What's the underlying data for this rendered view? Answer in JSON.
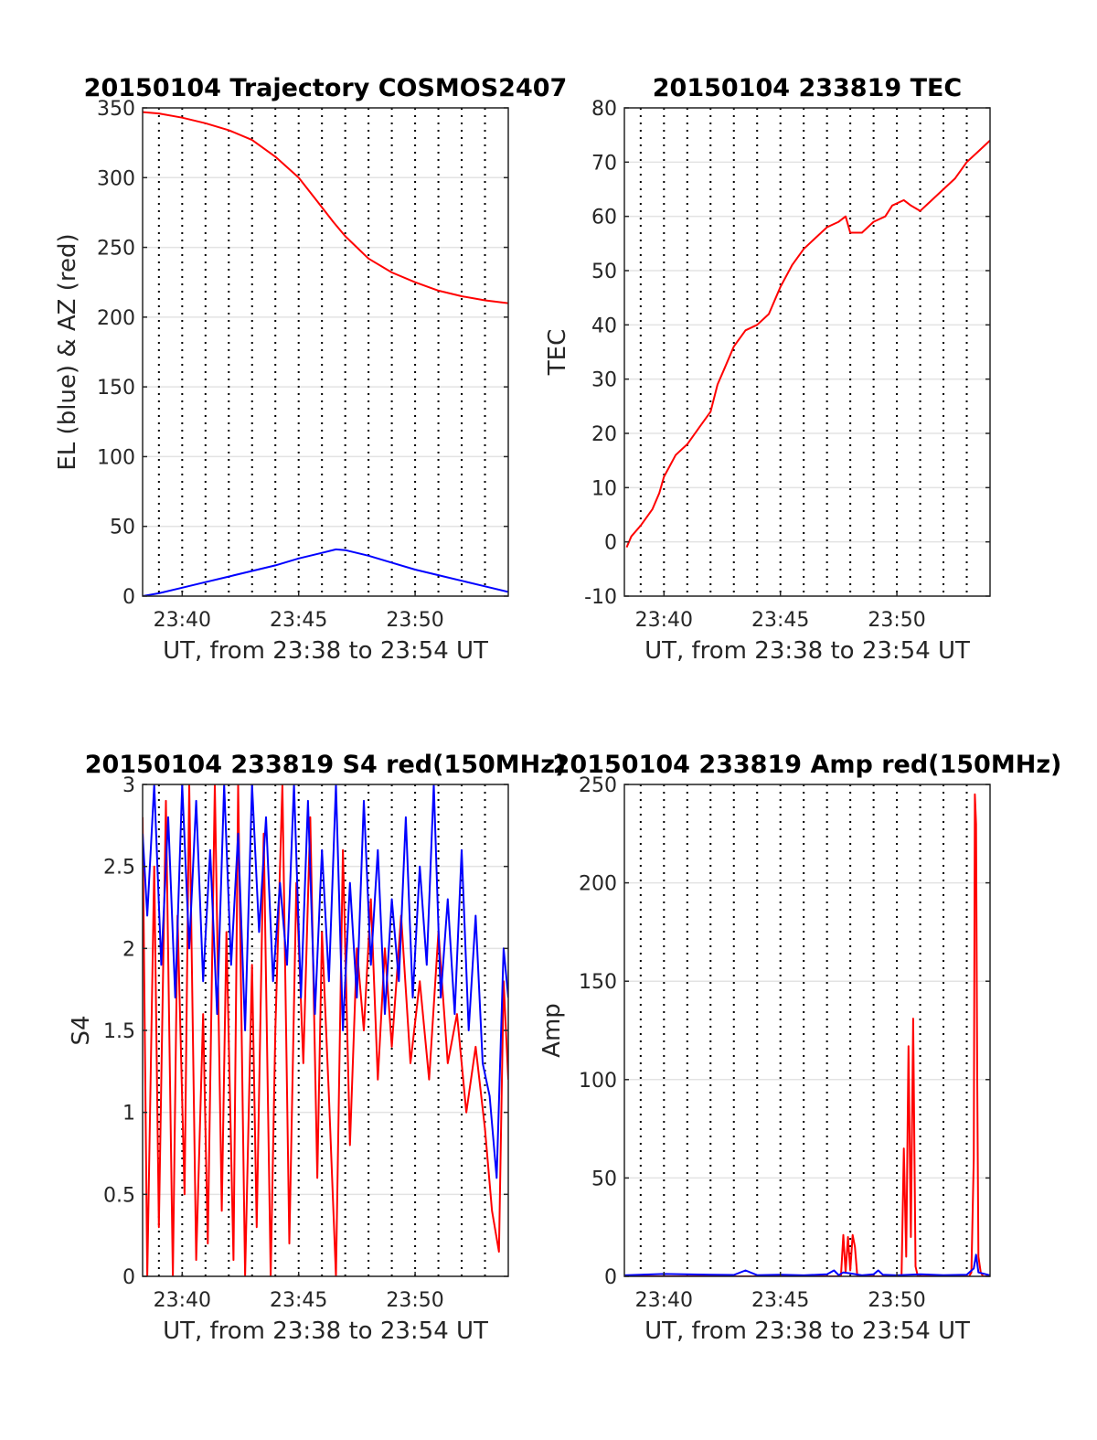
{
  "chart_data": [
    {
      "id": "trajectory",
      "type": "line",
      "title": "20150104 Trajectory COSMOS2407",
      "xlabel": "UT, from 23:38 to 23:54 UT",
      "ylabel": "EL (blue) & AZ (red)",
      "x_unit": "minutes of hour 23",
      "xlim": [
        38.3,
        54.0
      ],
      "ylim": [
        0,
        350
      ],
      "yticks": [
        0,
        50,
        100,
        150,
        200,
        250,
        300,
        350
      ],
      "ytick_labels": [
        "0",
        "50",
        "100",
        "150",
        "200",
        "250",
        "300",
        "350"
      ],
      "xticks": [
        40,
        45,
        50
      ],
      "xtick_labels": [
        "23:40",
        "23:45",
        "23:50"
      ],
      "minor_xgrid": [
        39,
        40,
        41,
        42,
        43,
        44,
        45,
        46,
        47,
        48,
        49,
        50,
        51,
        52,
        53
      ],
      "grid": true,
      "series": [
        {
          "color": "#ff0000",
          "x": [
            38.3,
            39.0,
            40.0,
            41.0,
            42.0,
            43.0,
            44.0,
            45.0,
            45.8,
            46.5,
            47.0,
            48.0,
            49.0,
            50.0,
            51.0,
            52.0,
            53.0,
            54.0
          ],
          "values": [
            347,
            346,
            343,
            339,
            334,
            327,
            315,
            300,
            283,
            268,
            258,
            242,
            232,
            225,
            219,
            215,
            212,
            210
          ]
        },
        {
          "color": "#0000ff",
          "x": [
            38.3,
            39.0,
            40.0,
            41.0,
            42.0,
            43.0,
            44.0,
            45.0,
            46.0,
            46.6,
            47.0,
            48.0,
            49.0,
            50.0,
            51.0,
            52.0,
            53.0,
            54.0
          ],
          "values": [
            0,
            2,
            6,
            10,
            14,
            18,
            22,
            27,
            31,
            33.5,
            33,
            29,
            24,
            19,
            15,
            11,
            7,
            3
          ]
        }
      ]
    },
    {
      "id": "tec",
      "type": "line",
      "title": "20150104 233819 TEC",
      "xlabel": "UT, from 23:38 to 23:54 UT",
      "ylabel": "TEC",
      "x_unit": "minutes of hour 23",
      "xlim": [
        38.3,
        54.0
      ],
      "ylim": [
        -10,
        80
      ],
      "yticks": [
        -10,
        0,
        10,
        20,
        30,
        40,
        50,
        60,
        70,
        80
      ],
      "ytick_labels": [
        "-10",
        "0",
        "10",
        "20",
        "30",
        "40",
        "50",
        "60",
        "70",
        "80"
      ],
      "xticks": [
        40,
        45,
        50
      ],
      "xtick_labels": [
        "23:40",
        "23:45",
        "23:50"
      ],
      "minor_xgrid": [
        39,
        40,
        41,
        42,
        43,
        44,
        45,
        46,
        47,
        48,
        49,
        50,
        51,
        52,
        53
      ],
      "grid": true,
      "series": [
        {
          "color": "#ff0000",
          "x": [
            38.4,
            38.6,
            39.0,
            39.5,
            39.8,
            40.0,
            40.5,
            41.0,
            41.5,
            42.0,
            42.3,
            42.6,
            43.0,
            43.5,
            44.0,
            44.5,
            45.0,
            45.5,
            46.0,
            46.5,
            47.0,
            47.5,
            47.8,
            48.0,
            48.5,
            49.0,
            49.5,
            49.8,
            50.3,
            50.6,
            51.0,
            51.5,
            52.0,
            52.5,
            53.0,
            53.5,
            54.0
          ],
          "values": [
            -1,
            1,
            3,
            6,
            9,
            12,
            16,
            18,
            21,
            24,
            29,
            32,
            36,
            39,
            40,
            42,
            47,
            51,
            54,
            56,
            58,
            59,
            60,
            57,
            57,
            59,
            60,
            62,
            63,
            62,
            61,
            63,
            65,
            67,
            70,
            72,
            74
          ]
        }
      ]
    },
    {
      "id": "s4",
      "type": "line",
      "title": "20150104 233819 S4 red(150MHz)",
      "xlabel": "UT, from 23:38 to 23:54 UT",
      "ylabel": "S4",
      "x_unit": "minutes of hour 23",
      "xlim": [
        38.3,
        54.0
      ],
      "ylim": [
        0,
        3
      ],
      "yticks": [
        0,
        0.5,
        1,
        1.5,
        2,
        2.5,
        3
      ],
      "ytick_labels": [
        "0",
        "0.5",
        "1",
        "1.5",
        "2",
        "2.5",
        "3"
      ],
      "xticks": [
        40,
        45,
        50
      ],
      "xtick_labels": [
        "23:40",
        "23:45",
        "23:50"
      ],
      "minor_xgrid": [
        39,
        40,
        41,
        42,
        43,
        44,
        45,
        46,
        47,
        48,
        49,
        50,
        51,
        52,
        53
      ],
      "grid": true,
      "series": [
        {
          "color": "#ff0000",
          "x": [
            38.3,
            38.5,
            38.8,
            39.0,
            39.3,
            39.6,
            39.8,
            40.1,
            40.3,
            40.6,
            40.9,
            41.1,
            41.4,
            41.7,
            41.9,
            42.2,
            42.4,
            42.7,
            43.0,
            43.2,
            43.5,
            43.8,
            44.0,
            44.3,
            44.6,
            44.9,
            45.2,
            45.5,
            45.8,
            46.0,
            46.3,
            46.6,
            46.9,
            47.2,
            47.5,
            47.8,
            48.1,
            48.4,
            48.7,
            49.0,
            49.4,
            49.8,
            50.2,
            50.6,
            51.0,
            51.4,
            51.8,
            52.2,
            52.6,
            53.0,
            53.3,
            53.6,
            53.8,
            54.0
          ],
          "values": [
            2.8,
            0,
            2.5,
            0.3,
            2.9,
            0,
            2.2,
            0.5,
            3,
            0.1,
            1.6,
            0.2,
            3,
            0.4,
            2.1,
            0.1,
            3,
            0,
            1.9,
            0.3,
            2.7,
            0,
            1.5,
            3,
            0.2,
            2.4,
            1.3,
            2.8,
            0.6,
            2.1,
            1.1,
            0,
            2.6,
            0.8,
            2.0,
            1.5,
            2.3,
            1.2,
            2.0,
            1.4,
            2.2,
            1.3,
            1.8,
            1.2,
            2.1,
            1.3,
            1.6,
            1.0,
            1.4,
            0.9,
            0.4,
            0.15,
            1.8,
            1.2
          ]
        },
        {
          "color": "#0000ff",
          "x": [
            38.3,
            38.5,
            38.8,
            39.1,
            39.4,
            39.7,
            40.0,
            40.3,
            40.6,
            40.9,
            41.2,
            41.5,
            41.8,
            42.1,
            42.4,
            42.7,
            43.0,
            43.3,
            43.6,
            43.9,
            44.2,
            44.5,
            44.8,
            45.1,
            45.4,
            45.7,
            46.0,
            46.3,
            46.6,
            46.9,
            47.2,
            47.5,
            47.8,
            48.1,
            48.4,
            48.7,
            49.0,
            49.3,
            49.6,
            49.9,
            50.2,
            50.5,
            50.8,
            51.1,
            51.4,
            51.7,
            52.0,
            52.3,
            52.6,
            52.9,
            53.2,
            53.5,
            53.8,
            54.0
          ],
          "values": [
            2.7,
            2.2,
            3,
            1.9,
            2.8,
            1.7,
            3,
            2.0,
            2.9,
            1.8,
            2.6,
            1.6,
            3,
            1.9,
            2.7,
            1.5,
            3,
            2.1,
            2.8,
            1.8,
            2.4,
            1.9,
            3,
            1.7,
            2.9,
            1.6,
            2.6,
            1.8,
            3,
            1.5,
            2.4,
            1.7,
            2.9,
            1.9,
            2.6,
            1.6,
            2.3,
            1.8,
            2.8,
            1.7,
            2.5,
            1.9,
            3,
            1.7,
            2.3,
            1.6,
            2.6,
            1.5,
            2.2,
            1.3,
            1.1,
            0.6,
            2.0,
            1.7
          ]
        }
      ]
    },
    {
      "id": "amp",
      "type": "line",
      "title": "20150104 233819 Amp red(150MHz)",
      "xlabel": "UT, from 23:38 to 23:54 UT",
      "ylabel": "Amp",
      "x_unit": "minutes of hour 23",
      "xlim": [
        38.3,
        54.0
      ],
      "ylim": [
        0,
        250
      ],
      "yticks": [
        0,
        50,
        100,
        150,
        200,
        250
      ],
      "ytick_labels": [
        "0",
        "50",
        "100",
        "150",
        "200",
        "250"
      ],
      "xticks": [
        40,
        45,
        50
      ],
      "xtick_labels": [
        "23:40",
        "23:45",
        "23:50"
      ],
      "minor_xgrid": [
        39,
        40,
        41,
        42,
        43,
        44,
        45,
        46,
        47,
        48,
        49,
        50,
        51,
        52,
        53
      ],
      "grid": true,
      "series": [
        {
          "color": "#ff0000",
          "x": [
            38.3,
            47.6,
            47.7,
            47.8,
            47.9,
            48.0,
            48.1,
            48.2,
            48.3,
            49.0,
            50.2,
            50.3,
            50.4,
            50.5,
            50.6,
            50.7,
            50.8,
            50.9,
            51.0,
            52.0,
            53.1,
            53.2,
            53.3,
            53.35,
            53.4,
            53.45,
            53.5,
            53.6,
            53.7,
            54.0
          ],
          "values": [
            0,
            0,
            21,
            2,
            20,
            3,
            21,
            15,
            0,
            0,
            0,
            65,
            10,
            117,
            20,
            131,
            5,
            0,
            0,
            0,
            0,
            2,
            60,
            245,
            230,
            100,
            10,
            2,
            0,
            0
          ]
        },
        {
          "color": "#0000ff",
          "x": [
            38.3,
            40.0,
            42.0,
            43.0,
            43.5,
            44.0,
            45.0,
            46.0,
            47.0,
            47.3,
            47.5,
            47.7,
            48.0,
            48.5,
            49.0,
            49.2,
            49.4,
            50.0,
            51.0,
            52.0,
            53.0,
            53.3,
            53.4,
            53.5,
            54.0
          ],
          "values": [
            0.5,
            1.2,
            0.8,
            0.7,
            3,
            0.6,
            0.8,
            0.5,
            1.0,
            3,
            0.6,
            2,
            1.5,
            0.5,
            1.0,
            3,
            0.8,
            0.5,
            1.0,
            0.6,
            0.8,
            4,
            11,
            2,
            0.5
          ]
        }
      ]
    }
  ]
}
